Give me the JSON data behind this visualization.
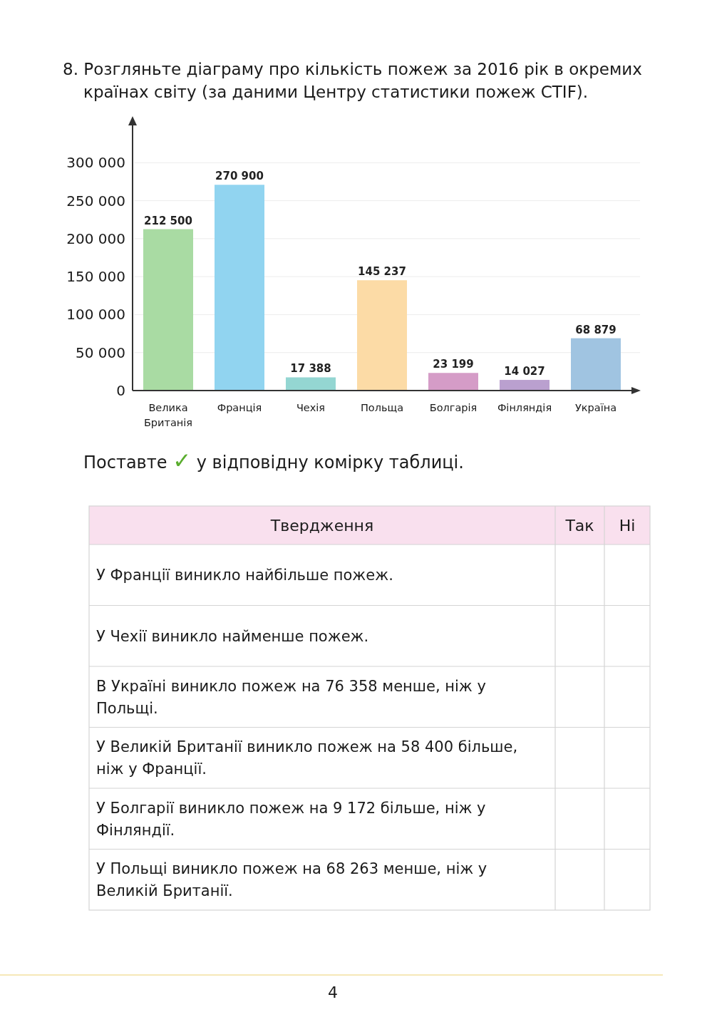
{
  "chart_data": {
    "type": "bar",
    "title": "8. Розгляньте діаграму про кількість пожеж за 2016 рік в окремих країнах світу (за даними Центру статистики пожеж CTIF).",
    "categories": [
      "Велика Британія",
      "Франція",
      "Чехія",
      "Польща",
      "Болгарія",
      "Фінляндія",
      "Україна"
    ],
    "values": [
      212500,
      270900,
      17388,
      145237,
      23199,
      14027,
      68879
    ],
    "colors": [
      "#a9dba3",
      "#91d4f0",
      "#94d6d2",
      "#fcdba6",
      "#d59cc7",
      "#baa0cf",
      "#a0c4e1"
    ],
    "value_labels": [
      "212 500",
      "270 900",
      "17 388",
      "145 237",
      "23 199",
      "14 027",
      "68 879"
    ],
    "ylim": [
      0,
      350000
    ],
    "yticks": [
      0,
      {
        "value": 50000,
        "label": "50 000"
      },
      {
        "value": 100000,
        "label": "100 000"
      },
      {
        "value": 150000,
        "label": "150 000"
      },
      {
        "value": 200000,
        "label": "200 000"
      },
      {
        "value": 250000,
        "label": "250 000"
      },
      {
        "value": 300000,
        "label": "300 000"
      }
    ],
    "grid": "y",
    "annotations": [
      "Поставте ✓ у відповідну комірку таблиці.",
      "Твердження",
      "Так",
      "Ні",
      "У Франції виникло найбільше пожеж.",
      "У Чехії виникло найменше пожеж.",
      "В Україні виникло пожеж на 76 358 менше, ніж у Польщі.",
      "У Великій Британії виникло пожеж на 58 400 більше, ніж у Франції.",
      "У Болгарії виникло пожеж на 9 172 більше, ніж у Фінляндії.",
      "У Польщі виникло пожеж на 68 263 менше, ніж у Великій Британії.",
      "4"
    ]
  }
}
